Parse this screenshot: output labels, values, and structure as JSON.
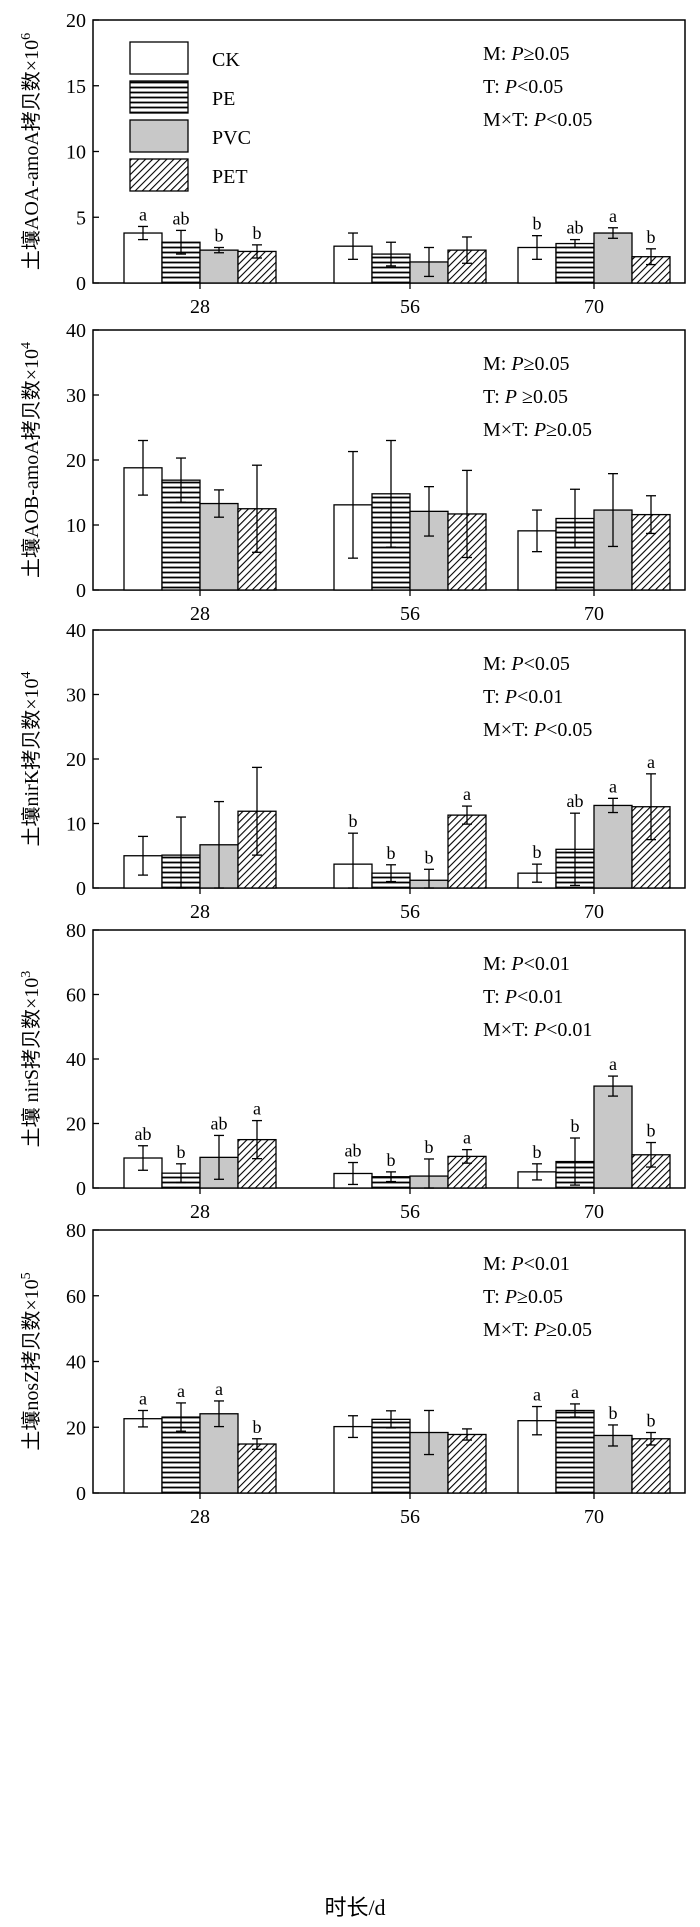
{
  "legend": [
    {
      "label": "CK",
      "fill": "#ffffff",
      "pattern": "none"
    },
    {
      "label": "PE",
      "fill": "#ffffff",
      "pattern": "hlines"
    },
    {
      "label": "PVC",
      "fill": "#c8c8c8",
      "pattern": "none"
    },
    {
      "label": "PET",
      "fill": "#ffffff",
      "pattern": "diag"
    }
  ],
  "xlabel": "时长/d",
  "chart_data": [
    {
      "type": "bar",
      "categories": [
        "28",
        "56",
        "70"
      ],
      "ylabel": "土壤AOA-amoA拷贝数×10",
      "ylabel_exp": "6",
      "ylim": [
        0,
        20
      ],
      "yticks": [
        0,
        5,
        10,
        15,
        20
      ],
      "stats": [
        "M: P≥0.05",
        "T: P<0.05",
        "M×T: P<0.05"
      ],
      "show_legend": true,
      "series": [
        {
          "name": "CK",
          "values": [
            3.8,
            2.8,
            2.7
          ],
          "err": [
            0.5,
            1.0,
            0.9
          ],
          "labels": [
            "a",
            "",
            "b"
          ]
        },
        {
          "name": "PE",
          "values": [
            3.1,
            2.2,
            3.0
          ],
          "err": [
            0.9,
            0.9,
            0.3
          ],
          "labels": [
            "ab",
            "",
            "ab"
          ]
        },
        {
          "name": "PVC",
          "values": [
            2.5,
            1.6,
            3.8
          ],
          "err": [
            0.2,
            1.1,
            0.4
          ],
          "labels": [
            "b",
            "",
            "a"
          ]
        },
        {
          "name": "PET",
          "values": [
            2.4,
            2.5,
            2.0
          ],
          "err": [
            0.5,
            1.0,
            0.6
          ],
          "labels": [
            "b",
            "",
            "b"
          ]
        }
      ]
    },
    {
      "type": "bar",
      "categories": [
        "28",
        "56",
        "70"
      ],
      "ylabel": "土壤AOB-amoA拷贝数×10",
      "ylabel_exp": "4",
      "ylim": [
        0,
        40
      ],
      "yticks": [
        0,
        10,
        20,
        30,
        40
      ],
      "stats": [
        "M: P≥0.05",
        "T: P ≥0.05",
        "M×T: P≥0.05"
      ],
      "show_legend": false,
      "series": [
        {
          "name": "CK",
          "values": [
            18.8,
            13.1,
            9.1
          ],
          "err": [
            4.2,
            8.2,
            3.2
          ],
          "labels": [
            "",
            "",
            ""
          ]
        },
        {
          "name": "PE",
          "values": [
            16.9,
            14.8,
            11.0
          ],
          "err": [
            3.4,
            8.2,
            4.5
          ],
          "labels": [
            "",
            "",
            ""
          ]
        },
        {
          "name": "PVC",
          "values": [
            13.3,
            12.1,
            12.3
          ],
          "err": [
            2.1,
            3.8,
            5.6
          ],
          "labels": [
            "",
            "",
            ""
          ]
        },
        {
          "name": "PET",
          "values": [
            12.5,
            11.7,
            11.6
          ],
          "err": [
            6.7,
            6.7,
            2.9
          ],
          "labels": [
            "",
            "",
            ""
          ]
        }
      ]
    },
    {
      "type": "bar",
      "categories": [
        "28",
        "56",
        "70"
      ],
      "ylabel": "土壤nirK拷贝数×10",
      "ylabel_exp": "4",
      "ylim": [
        0,
        40
      ],
      "yticks": [
        0,
        10,
        20,
        30,
        40
      ],
      "stats": [
        "M: P<0.05",
        "T: P<0.01",
        "M×T: P<0.05"
      ],
      "show_legend": false,
      "series": [
        {
          "name": "CK",
          "values": [
            5.0,
            3.7,
            2.3
          ],
          "err": [
            3.0,
            4.8,
            1.4
          ],
          "labels": [
            "",
            "b",
            "b"
          ]
        },
        {
          "name": "PE",
          "values": [
            5.1,
            2.3,
            6.0
          ],
          "err": [
            5.9,
            1.3,
            5.6
          ],
          "labels": [
            "",
            "b",
            "ab"
          ]
        },
        {
          "name": "PVC",
          "values": [
            6.7,
            1.2,
            12.8
          ],
          "err": [
            6.7,
            1.7,
            1.1
          ],
          "labels": [
            "",
            "b",
            "a"
          ]
        },
        {
          "name": "PET",
          "values": [
            11.9,
            11.3,
            12.6
          ],
          "err": [
            6.8,
            1.4,
            5.1
          ],
          "labels": [
            "",
            "a",
            "a"
          ]
        }
      ]
    },
    {
      "type": "bar",
      "categories": [
        "28",
        "56",
        "70"
      ],
      "ylabel": "土壤 nirS拷贝数×10",
      "ylabel_exp": "3",
      "ylim": [
        0,
        80
      ],
      "yticks": [
        0,
        20,
        40,
        60,
        80
      ],
      "stats": [
        "M: P<0.01",
        "T: P<0.01",
        "M×T: P<0.01"
      ],
      "show_legend": false,
      "series": [
        {
          "name": "CK",
          "values": [
            9.3,
            4.5,
            5.0
          ],
          "err": [
            3.8,
            3.4,
            2.5
          ],
          "labels": [
            "ab",
            "ab",
            "b"
          ]
        },
        {
          "name": "PE",
          "values": [
            4.6,
            3.5,
            8.2
          ],
          "err": [
            2.9,
            1.5,
            7.3
          ],
          "labels": [
            "b",
            "b",
            "b"
          ]
        },
        {
          "name": "PVC",
          "values": [
            9.5,
            3.7,
            31.6
          ],
          "err": [
            6.8,
            5.3,
            3.1
          ],
          "labels": [
            "ab",
            "b",
            "a"
          ]
        },
        {
          "name": "PET",
          "values": [
            15.0,
            9.8,
            10.3
          ],
          "err": [
            5.9,
            2.1,
            3.8
          ],
          "labels": [
            "a",
            "a",
            "b"
          ]
        }
      ]
    },
    {
      "type": "bar",
      "categories": [
        "28",
        "56",
        "70"
      ],
      "ylabel": "土壤nosZ拷贝数×10",
      "ylabel_exp": "5",
      "ylim": [
        0,
        80
      ],
      "yticks": [
        0,
        20,
        40,
        60,
        80
      ],
      "stats": [
        "M: P<0.01",
        "T: P≥0.05",
        "M×T: P≥0.05"
      ],
      "show_legend": false,
      "series": [
        {
          "name": "CK",
          "values": [
            22.6,
            20.2,
            22.0
          ],
          "err": [
            2.5,
            3.3,
            4.3
          ],
          "labels": [
            "a",
            "",
            "a"
          ]
        },
        {
          "name": "PE",
          "values": [
            23.1,
            22.4,
            25.1
          ],
          "err": [
            4.3,
            2.6,
            2.0
          ],
          "labels": [
            "a",
            "",
            "a"
          ]
        },
        {
          "name": "PVC",
          "values": [
            24.1,
            18.4,
            17.5
          ],
          "err": [
            3.9,
            6.7,
            3.2
          ],
          "labels": [
            "a",
            "",
            "b"
          ]
        },
        {
          "name": "PET",
          "values": [
            14.9,
            17.8,
            16.5
          ],
          "err": [
            1.6,
            1.7,
            1.9
          ],
          "labels": [
            "b",
            "",
            "b"
          ]
        }
      ]
    }
  ]
}
